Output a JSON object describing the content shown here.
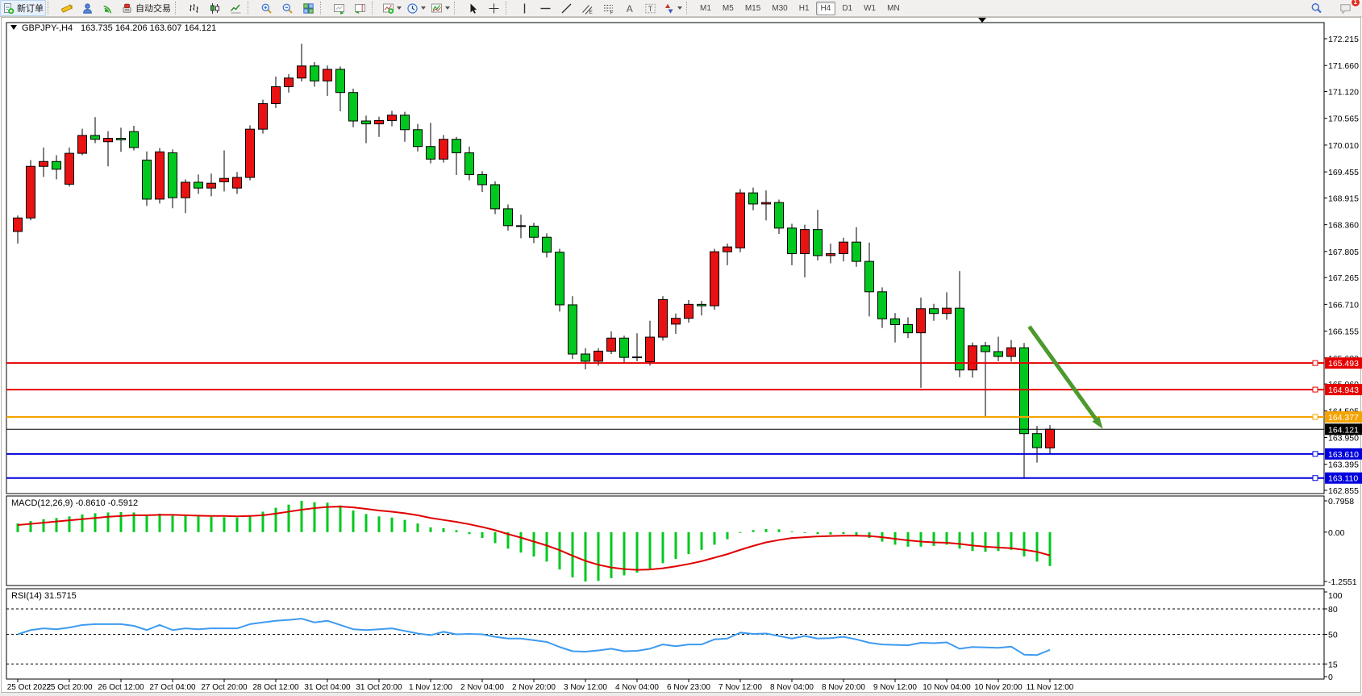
{
  "toolbar": {
    "buttons": [
      {
        "name": "new-order",
        "icon": "doc_plus",
        "label": "新订单"
      },
      {
        "sep": true
      },
      {
        "name": "metaeditor",
        "icon": "editor"
      },
      {
        "name": "market-watch",
        "icon": "person"
      },
      {
        "name": "signals",
        "icon": "signal"
      },
      {
        "name": "auto-trading",
        "icon": "robot",
        "label": "自动交易"
      },
      {
        "sep": true
      },
      {
        "name": "bar-chart-type",
        "icon": "bars"
      },
      {
        "name": "candlestick-chart-type",
        "icon": "candles"
      },
      {
        "name": "line-chart-type",
        "icon": "linechart"
      },
      {
        "sep": true
      },
      {
        "name": "zoom-in",
        "icon": "zoom_in"
      },
      {
        "name": "zoom-out",
        "icon": "zoom_out"
      },
      {
        "name": "tile-windows",
        "icon": "tiles"
      },
      {
        "sep": true
      },
      {
        "name": "auto-scroll",
        "icon": "autoscroll"
      },
      {
        "name": "chart-shift",
        "icon": "shift"
      },
      {
        "sep": true
      },
      {
        "name": "indicators",
        "icon": "ind_plus",
        "dropdown": true
      },
      {
        "name": "periods",
        "icon": "clock",
        "dropdown": true
      },
      {
        "name": "templates",
        "icon": "template",
        "dropdown": true
      },
      {
        "sep": true
      },
      {
        "name": "cursor",
        "icon": "cursor"
      },
      {
        "name": "crosshair",
        "icon": "crosshair"
      },
      {
        "sep": true
      },
      {
        "name": "vertical-line",
        "icon": "vline"
      },
      {
        "name": "horizontal-line",
        "icon": "hline"
      },
      {
        "name": "trendline",
        "icon": "tline"
      },
      {
        "name": "equidistant-channel",
        "icon": "channel"
      },
      {
        "name": "fibonacci",
        "icon": "fibo"
      },
      {
        "name": "text",
        "icon": "textA"
      },
      {
        "name": "text-label",
        "icon": "textT"
      },
      {
        "name": "arrows",
        "icon": "arrows",
        "dropdown": true
      },
      {
        "sep": true
      }
    ],
    "timeframes": {
      "items": [
        "M1",
        "M5",
        "M15",
        "M30",
        "H1",
        "H4",
        "D1",
        "W1",
        "MN"
      ],
      "active": "H4"
    },
    "right": [
      {
        "name": "search",
        "icon": "search"
      },
      {
        "name": "chat",
        "icon": "chat",
        "badge": "1"
      }
    ]
  },
  "chart": {
    "title": {
      "symbol_period": "GBPJPY-,H4",
      "ohlc_values": "163.735 164.206 163.607 164.121"
    }
  },
  "chart_data": [
    {
      "type": "candlestick",
      "title": "GBPJPY-,H4",
      "current_ohlc": {
        "open": "163.735",
        "high": "164.206",
        "low": "163.607",
        "close": "164.121"
      },
      "ylim": [
        162.855,
        172.215
      ],
      "bull_color": "#e81212",
      "bear_color": "#00c81e",
      "grid": false,
      "price_axis_ticks": [
        "172.215",
        "171.660",
        "171.120",
        "170.565",
        "170.010",
        "169.455",
        "168.915",
        "168.360",
        "167.805",
        "167.265",
        "166.710",
        "166.155",
        "165.600",
        "165.060",
        "164.505",
        "163.950",
        "163.395",
        "162.855"
      ],
      "x_labels": [
        "25 Oct 2022",
        "25 Oct 20:00",
        "26 Oct 12:00",
        "27 Oct 04:00",
        "27 Oct 20:00",
        "28 Oct 12:00",
        "31 Oct 04:00",
        "31 Oct 20:00",
        "1 Nov 12:00",
        "2 Nov 04:00",
        "2 Nov 20:00",
        "3 Nov 12:00",
        "4 Nov 04:00",
        "6 Nov 23:00",
        "7 Nov 12:00",
        "8 Nov 04:00",
        "8 Nov 20:00",
        "9 Nov 12:00",
        "10 Nov 04:00",
        "10 Nov 20:00",
        "11 Nov 12:00"
      ],
      "x_label_every_n_candles": 4,
      "candles_ohlc": [
        [
          168.22,
          168.55,
          167.97,
          168.5
        ],
        [
          168.5,
          169.7,
          168.45,
          169.57
        ],
        [
          169.57,
          169.96,
          169.35,
          169.67
        ],
        [
          169.67,
          169.8,
          169.3,
          169.51
        ],
        [
          169.2,
          169.96,
          169.15,
          169.84
        ],
        [
          169.84,
          170.35,
          169.8,
          170.21
        ],
        [
          170.21,
          170.59,
          170.05,
          170.13
        ],
        [
          170.08,
          170.3,
          169.57,
          170.15
        ],
        [
          170.15,
          170.37,
          169.87,
          170.12
        ],
        [
          170.29,
          170.41,
          169.9,
          169.96
        ],
        [
          169.7,
          169.88,
          168.75,
          168.89
        ],
        [
          168.89,
          169.95,
          168.8,
          169.87
        ],
        [
          169.85,
          169.92,
          168.7,
          168.92
        ],
        [
          168.92,
          169.3,
          168.6,
          169.24
        ],
        [
          169.24,
          169.4,
          169.0,
          169.12
        ],
        [
          169.12,
          169.42,
          168.95,
          169.22
        ],
        [
          169.25,
          169.9,
          169.05,
          169.32
        ],
        [
          169.12,
          169.45,
          169.0,
          169.34
        ],
        [
          169.34,
          170.42,
          169.28,
          170.34
        ],
        [
          170.34,
          170.95,
          170.25,
          170.87
        ],
        [
          170.87,
          171.43,
          170.78,
          171.22
        ],
        [
          171.22,
          171.48,
          171.1,
          171.4
        ],
        [
          171.4,
          172.11,
          171.33,
          171.65
        ],
        [
          171.65,
          171.73,
          171.22,
          171.34
        ],
        [
          171.34,
          171.66,
          171.03,
          171.58
        ],
        [
          171.58,
          171.64,
          170.71,
          171.1
        ],
        [
          171.1,
          171.18,
          170.38,
          170.51
        ],
        [
          170.51,
          170.62,
          170.05,
          170.45
        ],
        [
          170.45,
          170.6,
          170.18,
          170.52
        ],
        [
          170.52,
          170.72,
          170.4,
          170.63
        ],
        [
          170.63,
          170.7,
          170.08,
          170.33
        ],
        [
          170.33,
          170.45,
          169.88,
          169.98
        ],
        [
          169.98,
          170.47,
          169.63,
          169.72
        ],
        [
          169.72,
          170.22,
          169.65,
          170.13
        ],
        [
          170.13,
          170.18,
          169.39,
          169.85
        ],
        [
          169.85,
          169.98,
          169.28,
          169.4
        ],
        [
          169.4,
          169.47,
          169.04,
          169.19
        ],
        [
          169.19,
          169.26,
          168.58,
          168.69
        ],
        [
          168.69,
          168.78,
          168.24,
          168.34
        ],
        [
          168.34,
          168.57,
          168.08,
          168.33
        ],
        [
          168.33,
          168.4,
          167.98,
          168.1
        ],
        [
          168.1,
          168.18,
          167.68,
          167.79
        ],
        [
          167.79,
          167.86,
          166.56,
          166.7
        ],
        [
          166.7,
          166.88,
          165.58,
          165.68
        ],
        [
          165.68,
          165.8,
          165.36,
          165.53
        ],
        [
          165.53,
          165.8,
          165.44,
          165.74
        ],
        [
          165.74,
          166.15,
          165.68,
          166.01
        ],
        [
          166.01,
          166.06,
          165.48,
          165.61
        ],
        [
          165.61,
          166.11,
          165.53,
          165.62
        ],
        [
          165.52,
          166.37,
          165.44,
          166.03
        ],
        [
          166.03,
          166.88,
          165.96,
          166.81
        ],
        [
          166.3,
          166.52,
          166.1,
          166.42
        ],
        [
          166.42,
          166.8,
          166.33,
          166.71
        ],
        [
          166.71,
          166.78,
          166.48,
          166.68
        ],
        [
          166.68,
          167.86,
          166.6,
          167.8
        ],
        [
          167.8,
          167.97,
          167.52,
          167.9
        ],
        [
          167.88,
          169.1,
          167.79,
          169.02
        ],
        [
          169.02,
          169.13,
          168.66,
          168.79
        ],
        [
          168.79,
          169.07,
          168.45,
          168.82
        ],
        [
          168.82,
          168.88,
          168.17,
          168.29
        ],
        [
          168.29,
          168.38,
          167.52,
          167.76
        ],
        [
          167.76,
          168.36,
          167.27,
          168.26
        ],
        [
          168.26,
          168.67,
          167.62,
          167.72
        ],
        [
          167.72,
          167.97,
          167.56,
          167.76
        ],
        [
          167.76,
          168.09,
          167.6,
          168.0
        ],
        [
          168.0,
          168.31,
          167.49,
          167.6
        ],
        [
          167.6,
          167.99,
          166.46,
          166.97
        ],
        [
          166.97,
          167.06,
          166.22,
          166.41
        ],
        [
          166.41,
          166.53,
          165.92,
          166.29
        ],
        [
          166.29,
          166.44,
          166.01,
          166.12
        ],
        [
          166.12,
          166.85,
          164.98,
          166.62
        ],
        [
          166.62,
          166.72,
          166.37,
          166.52
        ],
        [
          166.52,
          166.96,
          166.39,
          166.63
        ],
        [
          166.63,
          167.4,
          165.2,
          165.35
        ],
        [
          165.35,
          165.92,
          165.19,
          165.85
        ],
        [
          165.85,
          165.93,
          164.36,
          165.73
        ],
        [
          165.73,
          166.04,
          165.53,
          165.63
        ],
        [
          165.63,
          165.97,
          165.52,
          165.81
        ],
        [
          165.81,
          165.91,
          163.11,
          164.03
        ],
        [
          164.03,
          164.19,
          163.43,
          163.74
        ],
        [
          163.735,
          164.206,
          163.607,
          164.121
        ]
      ],
      "hlines": [
        {
          "price": 165.493,
          "label": "165.493",
          "color": "#e60000",
          "width": 2,
          "handle": true
        },
        {
          "price": 164.943,
          "label": "164.943",
          "color": "#e60000",
          "width": 2,
          "handle": true
        },
        {
          "price": 164.377,
          "label": "164.377",
          "color": "#f5a300",
          "width": 2,
          "handle": true
        },
        {
          "price": 164.121,
          "label": "164.121",
          "color": "#000000",
          "width": 1,
          "handle": false,
          "is_price_line": true
        },
        {
          "price": 163.61,
          "label": "163.610",
          "color": "#0000dd",
          "width": 2,
          "handle": true
        },
        {
          "price": 163.11,
          "label": "163.110",
          "color": "#0000dd",
          "width": 2,
          "handle": true
        }
      ],
      "annotation_arrow": {
        "from_index": 78.4,
        "from_price": 166.25,
        "to_index": 84.1,
        "to_price": 164.13,
        "color": "#4c9a2e"
      }
    },
    {
      "type": "bar",
      "name": "MACD(12,26,9)",
      "values_label": "-0.8610 -0.5912",
      "label_full": "MACD(12,26,9) -0.8610 -0.5912",
      "axis_labels": [
        "0.7958",
        "0.00",
        "-1.2551"
      ],
      "bar_color": "#00c81e",
      "signal_color": "#e00000",
      "macd": [
        0.22,
        0.28,
        0.33,
        0.36,
        0.4,
        0.45,
        0.48,
        0.5,
        0.51,
        0.5,
        0.44,
        0.47,
        0.42,
        0.41,
        0.4,
        0.39,
        0.38,
        0.37,
        0.43,
        0.52,
        0.62,
        0.7,
        0.7958,
        0.76,
        0.75,
        0.68,
        0.55,
        0.46,
        0.4,
        0.37,
        0.31,
        0.22,
        0.12,
        0.1,
        0.05,
        -0.05,
        -0.15,
        -0.28,
        -0.42,
        -0.52,
        -0.62,
        -0.75,
        -0.95,
        -1.15,
        -1.2551,
        -1.24,
        -1.17,
        -1.1,
        -1.03,
        -0.93,
        -0.79,
        -0.68,
        -0.56,
        -0.45,
        -0.32,
        -0.18,
        -0.02,
        0.05,
        0.08,
        0.07,
        0.02,
        -0.02,
        -0.05,
        -0.06,
        -0.05,
        -0.08,
        -0.15,
        -0.24,
        -0.32,
        -0.37,
        -0.37,
        -0.35,
        -0.32,
        -0.42,
        -0.48,
        -0.5,
        -0.48,
        -0.45,
        -0.62,
        -0.75,
        -0.861
      ],
      "signal": [
        0.18,
        0.21,
        0.24,
        0.27,
        0.3,
        0.33,
        0.36,
        0.39,
        0.41,
        0.43,
        0.43,
        0.44,
        0.44,
        0.43,
        0.42,
        0.41,
        0.41,
        0.4,
        0.41,
        0.43,
        0.47,
        0.52,
        0.57,
        0.61,
        0.64,
        0.65,
        0.63,
        0.59,
        0.55,
        0.52,
        0.48,
        0.43,
        0.36,
        0.31,
        0.26,
        0.2,
        0.13,
        0.05,
        -0.05,
        -0.14,
        -0.24,
        -0.34,
        -0.46,
        -0.6,
        -0.73,
        -0.83,
        -0.9,
        -0.94,
        -0.96,
        -0.95,
        -0.92,
        -0.87,
        -0.81,
        -0.74,
        -0.65,
        -0.56,
        -0.45,
        -0.35,
        -0.26,
        -0.2,
        -0.15,
        -0.13,
        -0.11,
        -0.1,
        -0.09,
        -0.09,
        -0.1,
        -0.13,
        -0.17,
        -0.21,
        -0.24,
        -0.26,
        -0.27,
        -0.3,
        -0.34,
        -0.37,
        -0.39,
        -0.41,
        -0.45,
        -0.5,
        -0.5912
      ]
    },
    {
      "type": "line",
      "name": "RSI(14)",
      "value_label": "31.5715",
      "label_full": "RSI(14) 31.5715",
      "line_color": "#3e9bf0",
      "axis_labels": [
        "100",
        "80",
        "50",
        "15",
        "0"
      ],
      "dashed_levels": [
        80,
        50,
        15
      ],
      "values": [
        50,
        55,
        57,
        56,
        58,
        61,
        62,
        62,
        62,
        60,
        55,
        61,
        55,
        57,
        56,
        57,
        57,
        57,
        62,
        64,
        66,
        67,
        68.5,
        64,
        66,
        61,
        56,
        55,
        56,
        57,
        54,
        51,
        49,
        53,
        50,
        50.5,
        50,
        47,
        45,
        45,
        43,
        41,
        35,
        30,
        29.5,
        31,
        33,
        30,
        30.5,
        33,
        38,
        36,
        38,
        38,
        44,
        45,
        52,
        50.5,
        51,
        48,
        45,
        48,
        45,
        45.5,
        47,
        44,
        40,
        38,
        37.5,
        37,
        40,
        39.5,
        40.5,
        33,
        35,
        34.5,
        34,
        35.5,
        26,
        25.5,
        31.5715
      ]
    }
  ]
}
